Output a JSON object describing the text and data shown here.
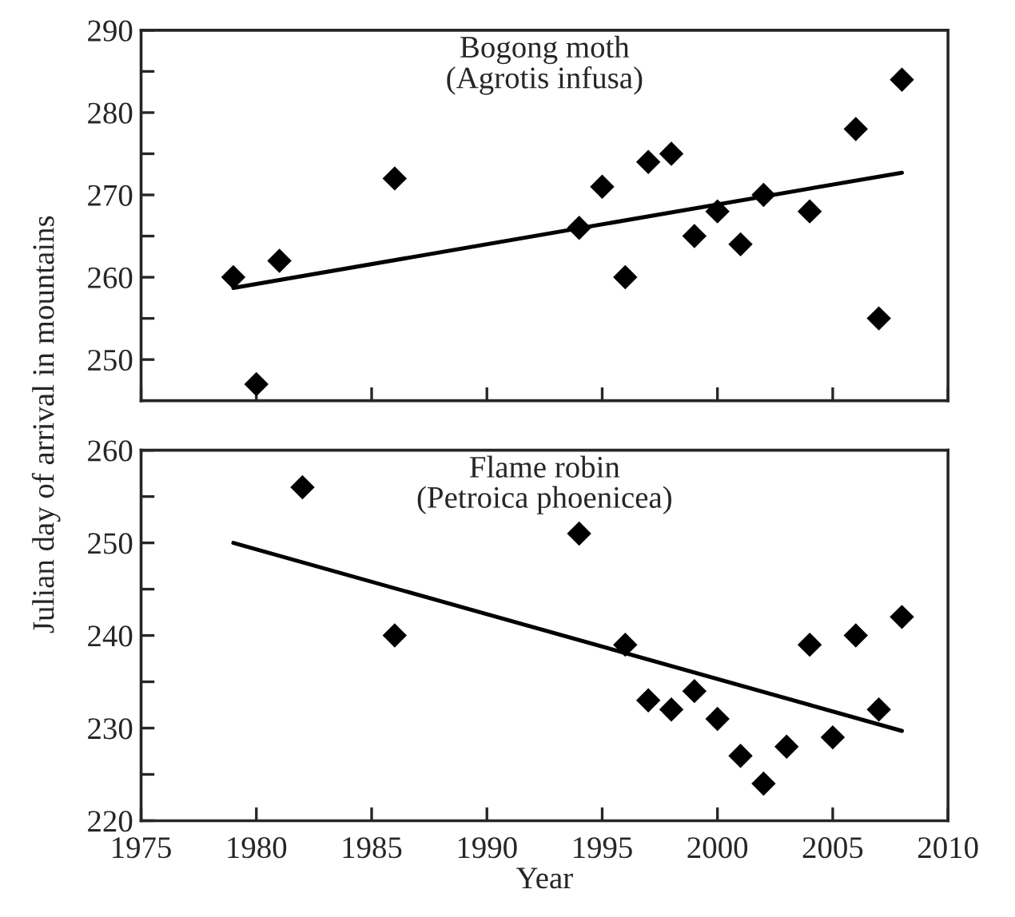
{
  "chart_data": [
    {
      "type": "scatter",
      "title": "Bogong moth\n(Agrotis infusa)",
      "xlim": [
        1975,
        2010
      ],
      "xticks": [
        {
          "value": 1975,
          "label": null
        },
        {
          "value": 1980,
          "label": null
        },
        {
          "value": 1985,
          "label": null
        },
        {
          "value": 1990,
          "label": null
        },
        {
          "value": 1995,
          "label": null
        },
        {
          "value": 2000,
          "label": null
        },
        {
          "value": 2005,
          "label": null
        },
        {
          "value": 2010,
          "label": null
        }
      ],
      "ylim": [
        245,
        290
      ],
      "yticks": [
        250,
        {
          "value": 255,
          "label": null
        },
        260,
        {
          "value": 265,
          "label": null
        },
        270,
        {
          "value": 275,
          "label": null
        },
        280,
        {
          "value": 285,
          "label": null
        },
        290
      ],
      "tick_labels": "y",
      "grid": false,
      "legend": false,
      "series": [
        {
          "color": "#000000",
          "marker": "diamond",
          "x": [
            1979,
            1980,
            1981,
            1986,
            1994,
            1995,
            1996,
            1997,
            1998,
            1999,
            2000,
            2001,
            2002,
            2004,
            2006,
            2007,
            2008
          ],
          "values": [
            260,
            247,
            262,
            272,
            266,
            271,
            260,
            274,
            275,
            265,
            268,
            264,
            270,
            268,
            278,
            255,
            284
          ]
        },
        {
          "type": "line",
          "color": "#000000",
          "marker": "none",
          "line_style": "solid",
          "x": [
            1979,
            2008
          ],
          "values": [
            258.7,
            272.7
          ]
        }
      ]
    },
    {
      "type": "scatter",
      "title": "Flame robin\n(Petroica phoenicea)",
      "xlabel": "Year",
      "ylabel": "Julian day of arrival in mountains",
      "xlim": [
        1975,
        2010
      ],
      "xticks": [
        1975,
        1980,
        1985,
        1990,
        1995,
        2000,
        2005,
        2010
      ],
      "ylim": [
        220,
        260
      ],
      "yticks": [
        220,
        {
          "value": 225,
          "label": null
        },
        230,
        {
          "value": 235,
          "label": null
        },
        240,
        {
          "value": 245,
          "label": null
        },
        250,
        {
          "value": 255,
          "label": null
        },
        260
      ],
      "grid": false,
      "legend": false,
      "series": [
        {
          "color": "#000000",
          "marker": "diamond",
          "x": [
            1982,
            1986,
            1994,
            1996,
            1997,
            1998,
            1999,
            2000,
            2001,
            2002,
            2003,
            2004,
            2005,
            2006,
            2007,
            2008
          ],
          "values": [
            256,
            240,
            251,
            239,
            233,
            232,
            234,
            231,
            227,
            224,
            228,
            239,
            229,
            240,
            232,
            242
          ]
        },
        {
          "type": "line",
          "color": "#000000",
          "marker": "none",
          "line_style": "solid",
          "x": [
            1979,
            2008
          ],
          "values": [
            250,
            229.7
          ]
        }
      ]
    }
  ]
}
